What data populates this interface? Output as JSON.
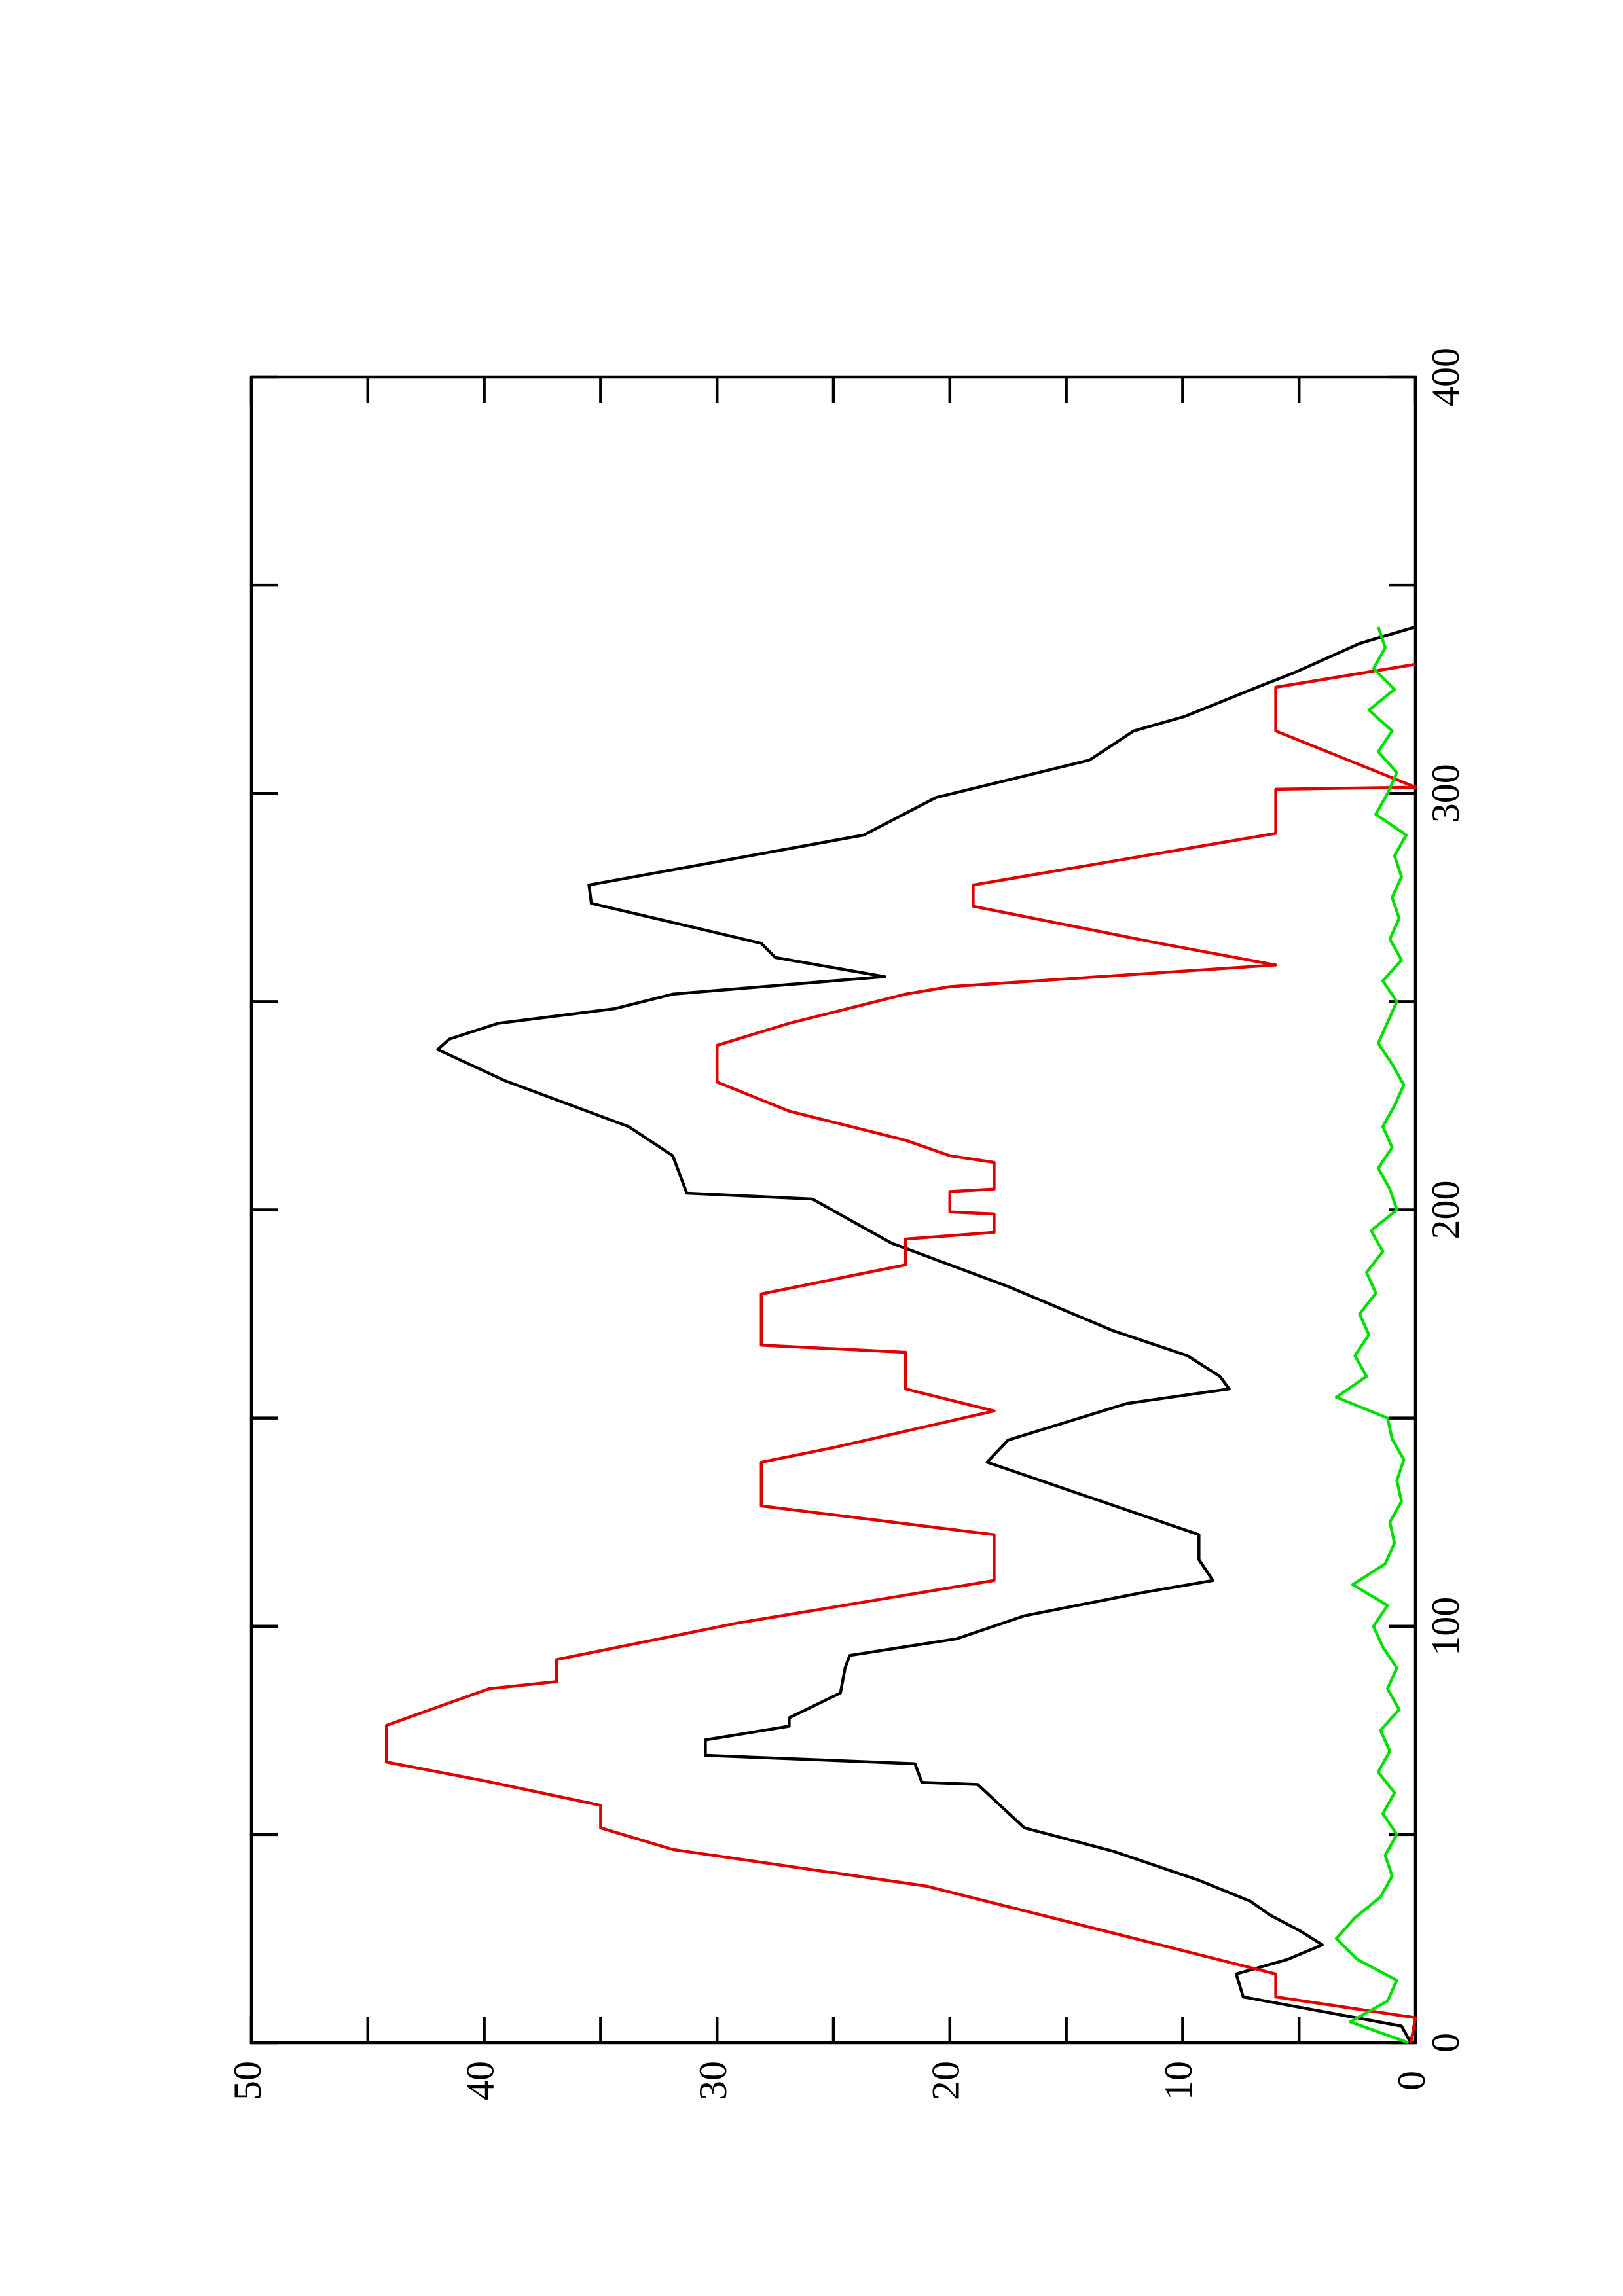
{
  "chart_data": {
    "type": "line",
    "xlim": [
      0,
      400
    ],
    "xticks": [
      0,
      100,
      200,
      300,
      400
    ],
    "xminorticks": [
      50,
      150,
      250,
      350
    ],
    "ylim": [
      0,
      50
    ],
    "yticks": [
      0,
      10,
      20,
      30,
      40,
      50
    ],
    "yminorticks": [
      5,
      15,
      25,
      35,
      45
    ],
    "series": [
      {
        "color": "#000000",
        "x": [
          0,
          4,
          11,
          16.5,
          20,
          23.5,
          27,
          30.5,
          34,
          39,
          46,
          51.6,
          62,
          62.5,
          67,
          69,
          72.7,
          76,
          78,
          84,
          90,
          93,
          97,
          102.5,
          108,
          111,
          116,
          122,
          139.4,
          144.7,
          153.5,
          157,
          160,
          165,
          171,
          181.6,
          192,
          202.6,
          204,
          213,
          220,
          231,
          238.5,
          241,
          244.8,
          248.3,
          251.8,
          256,
          260.6,
          264,
          273.6,
          278,
          290,
          299,
          308,
          315,
          318.5,
          325.5,
          329,
          336,
          340
        ],
        "values": [
          0.2,
          0.6,
          7.4,
          7.7,
          5.5,
          4,
          5,
          6.2,
          7.1,
          9.3,
          13,
          16.8,
          18.8,
          21.2,
          21.5,
          30.5,
          30.5,
          26.9,
          26.9,
          24.7,
          24.5,
          24.3,
          19.7,
          16.8,
          11.8,
          8.7,
          9.3,
          9.3,
          18.4,
          17.5,
          12.4,
          8,
          8.4,
          9.8,
          13,
          17.5,
          22.5,
          25.9,
          31.3,
          31.9,
          33.8,
          39.1,
          42,
          41.5,
          39.4,
          34.4,
          31.9,
          22.8,
          27.5,
          28.1,
          35.4,
          35.5,
          23.7,
          20.6,
          14,
          12.1,
          9.9,
          6.8,
          5.2,
          2.4,
          0
        ]
      },
      {
        "color": "#e00000",
        "x": [
          0,
          6,
          11,
          16.5,
          37.6,
          46.4,
          51.6,
          57,
          62.9,
          67.4,
          76.2,
          85,
          86.7,
          92,
          100.8,
          111,
          122,
          128.9,
          139.4,
          142.9,
          151.7,
          157,
          165.8,
          167.5,
          179.8,
          186.8,
          193,
          194.6,
          199,
          199.5,
          204.4,
          205,
          211.4,
          213,
          216.7,
          223.7,
          230.7,
          239.5,
          244.8,
          251.8,
          253.6,
          258.8,
          264,
          272.9,
          278,
          290.4,
          301,
          301.5,
          315,
          325.5,
          331
        ],
        "values": [
          0.2,
          0,
          6,
          6,
          21,
          31.9,
          35,
          35,
          40,
          44.2,
          44.2,
          39.8,
          36.9,
          36.9,
          29.1,
          18.1,
          18.1,
          28.1,
          28.1,
          25,
          18.1,
          21.9,
          21.9,
          28.1,
          28.1,
          21.9,
          21.9,
          18.1,
          18.1,
          20,
          20,
          18.1,
          18.1,
          20,
          21.9,
          26.9,
          30,
          30,
          26.9,
          21.9,
          20,
          6,
          11,
          19,
          19,
          6,
          6,
          0,
          6,
          6,
          0
        ]
      },
      {
        "color": "#00e000",
        "x": [
          0,
          5,
          10,
          15,
          20,
          25,
          30,
          35,
          40,
          45,
          50,
          55,
          60,
          65,
          70,
          75,
          80,
          85,
          90,
          95,
          100,
          105,
          110,
          115,
          120,
          125,
          130,
          135,
          140,
          145,
          150,
          155,
          160,
          165,
          170,
          175,
          180,
          185,
          190,
          195,
          200,
          205,
          210,
          215,
          220,
          225,
          230,
          235,
          240,
          245,
          250,
          255,
          260,
          265,
          270,
          275,
          280,
          285,
          290,
          295,
          300,
          305,
          310,
          315,
          320,
          325,
          330,
          335,
          340
        ],
        "values": [
          0.3,
          2.8,
          1.2,
          0.8,
          2.5,
          3.4,
          2.6,
          1.5,
          1.0,
          1.3,
          0.8,
          1.4,
          0.9,
          1.6,
          1.1,
          1.5,
          0.7,
          1.2,
          0.8,
          1.4,
          1.8,
          1.2,
          2.7,
          1.3,
          0.9,
          1.1,
          0.6,
          0.8,
          0.5,
          1.0,
          1.2,
          3.4,
          2.1,
          2.6,
          2.0,
          2.4,
          1.7,
          2.1,
          1.4,
          1.9,
          0.8,
          1.1,
          1.6,
          1.0,
          1.4,
          0.9,
          0.5,
          1.0,
          1.6,
          1.2,
          0.8,
          1.4,
          0.6,
          1.1,
          0.7,
          1.0,
          0.6,
          0.9,
          0.4,
          1.7,
          1.2,
          0.8,
          1.6,
          1.0,
          2.0,
          0.9,
          1.8,
          1.3,
          1.6
        ]
      }
    ]
  }
}
